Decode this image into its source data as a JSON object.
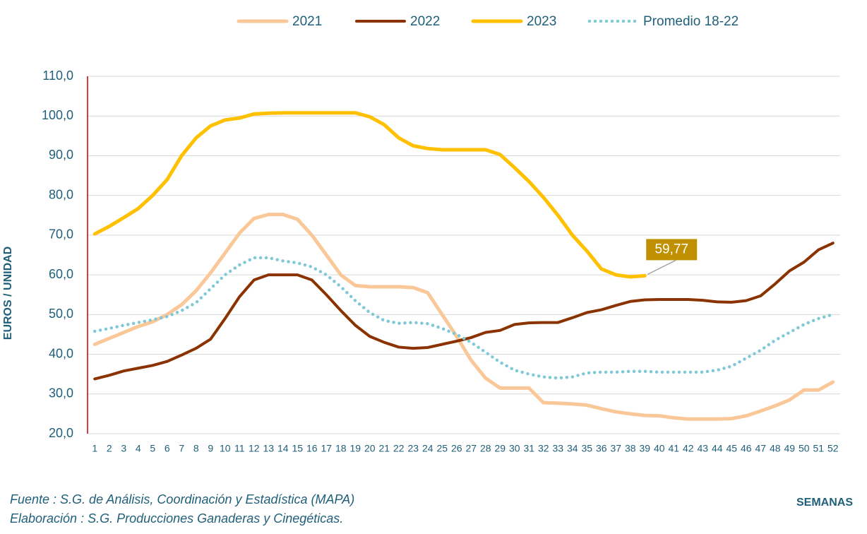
{
  "chart_data": {
    "type": "line",
    "categories": [
      1,
      2,
      3,
      4,
      5,
      6,
      7,
      8,
      9,
      10,
      11,
      12,
      13,
      14,
      15,
      16,
      17,
      18,
      19,
      20,
      21,
      22,
      23,
      24,
      25,
      26,
      27,
      28,
      29,
      30,
      31,
      32,
      33,
      34,
      35,
      36,
      37,
      38,
      39,
      40,
      41,
      42,
      43,
      44,
      45,
      46,
      47,
      48,
      49,
      50,
      51,
      52
    ],
    "series": [
      {
        "name": "2021",
        "color": "#fac898",
        "width": 5,
        "dotted": false,
        "values": [
          42.5,
          44,
          45.5,
          47,
          48.2,
          50,
          52.5,
          56,
          60.5,
          65.5,
          70.5,
          74.2,
          75.2,
          75.2,
          74,
          70,
          65,
          60,
          57.3,
          57,
          57,
          57,
          56.8,
          55.5,
          50,
          44.5,
          38.5,
          34,
          31.5,
          31.5,
          31.5,
          27.8,
          27.7,
          27.5,
          27.2,
          26.3,
          25.5,
          25,
          24.6,
          24.5,
          24,
          23.7,
          23.7,
          23.7,
          23.8,
          24.5,
          25.7,
          27,
          28.5,
          31,
          31,
          33
        ]
      },
      {
        "name": "2022",
        "color": "#8b3300",
        "width": 4,
        "dotted": false,
        "values": [
          33.8,
          34.7,
          35.8,
          36.5,
          37.2,
          38.2,
          39.8,
          41.5,
          43.8,
          49,
          54.5,
          58.7,
          60,
          60,
          60,
          58.7,
          55,
          51,
          47.3,
          44.5,
          43,
          41.8,
          41.5,
          41.7,
          42.5,
          43.3,
          44.2,
          45.5,
          46,
          47.5,
          47.9,
          48,
          48,
          49.2,
          50.5,
          51.2,
          52.3,
          53.3,
          53.7,
          53.8,
          53.8,
          53.8,
          53.6,
          53.2,
          53.1,
          53.5,
          54.7,
          57.7,
          61,
          63.2,
          66.3,
          68
        ]
      },
      {
        "name": "2023",
        "color": "#ffc000",
        "width": 5,
        "dotted": false,
        "values": [
          70.3,
          72.2,
          74.4,
          76.7,
          80,
          84,
          90,
          94.5,
          97.5,
          99,
          99.5,
          100.5,
          100.7,
          100.8,
          100.8,
          100.8,
          100.8,
          100.8,
          100.8,
          99.8,
          97.8,
          94.5,
          92.5,
          91.8,
          91.5,
          91.5,
          91.5,
          91.5,
          90.3,
          87,
          83.5,
          79.5,
          75,
          70,
          66,
          61.5,
          60,
          59.5,
          59.77,
          null,
          null,
          null,
          null,
          null,
          null,
          null,
          null,
          null,
          null,
          null,
          null,
          null
        ],
        "value_labels": [
          null,
          null,
          null,
          null,
          null,
          null,
          null,
          null,
          null,
          null,
          null,
          null,
          null,
          null,
          null,
          null,
          null,
          null,
          null,
          null,
          null,
          null,
          null,
          null,
          null,
          null,
          null,
          null,
          null,
          null,
          null,
          null,
          null,
          null,
          null,
          null,
          null,
          null,
          "59,77",
          null,
          null,
          null,
          null,
          null,
          null,
          null,
          null,
          null,
          null,
          null,
          null,
          null
        ]
      },
      {
        "name": "Promedio 18-22",
        "color": "#7ec8d8",
        "width": 4.5,
        "dotted": true,
        "values": [
          45.8,
          46.5,
          47.3,
          48,
          48.7,
          49.5,
          51,
          53,
          56.5,
          60,
          62.5,
          64.3,
          64.3,
          63.5,
          63,
          62,
          60,
          57,
          53.5,
          50.5,
          48.5,
          47.8,
          48,
          47.7,
          46.5,
          45,
          43,
          40.5,
          38,
          36,
          35,
          34.3,
          34,
          34.3,
          35.3,
          35.5,
          35.5,
          35.7,
          35.7,
          35.5,
          35.5,
          35.5,
          35.5,
          36,
          37,
          39,
          41,
          43.5,
          45.5,
          47.5,
          49,
          50
        ]
      }
    ],
    "ylim": [
      20,
      110
    ],
    "yticks": [
      {
        "value": 20,
        "label": "20,0"
      },
      {
        "value": 30,
        "label": "30,0"
      },
      {
        "value": 40,
        "label": "40,0"
      },
      {
        "value": 50,
        "label": "50,0"
      },
      {
        "value": 60,
        "label": "60,0"
      },
      {
        "value": 70,
        "label": "70,0"
      },
      {
        "value": 80,
        "label": "80,0"
      },
      {
        "value": 90,
        "label": "90,0"
      },
      {
        "value": 100,
        "label": "100,0"
      },
      {
        "value": 110,
        "label": "110,0"
      }
    ],
    "grid": true,
    "y_label": "EUROS / UNIDAD",
    "x_label": "SEMANAS",
    "footnotes": [
      "Fuente :  S.G. de Análisis, Coordinación y Estadística (MAPA)",
      "Elaboración : S.G. Producciones Ganaderas y Cinegéticas."
    ]
  }
}
